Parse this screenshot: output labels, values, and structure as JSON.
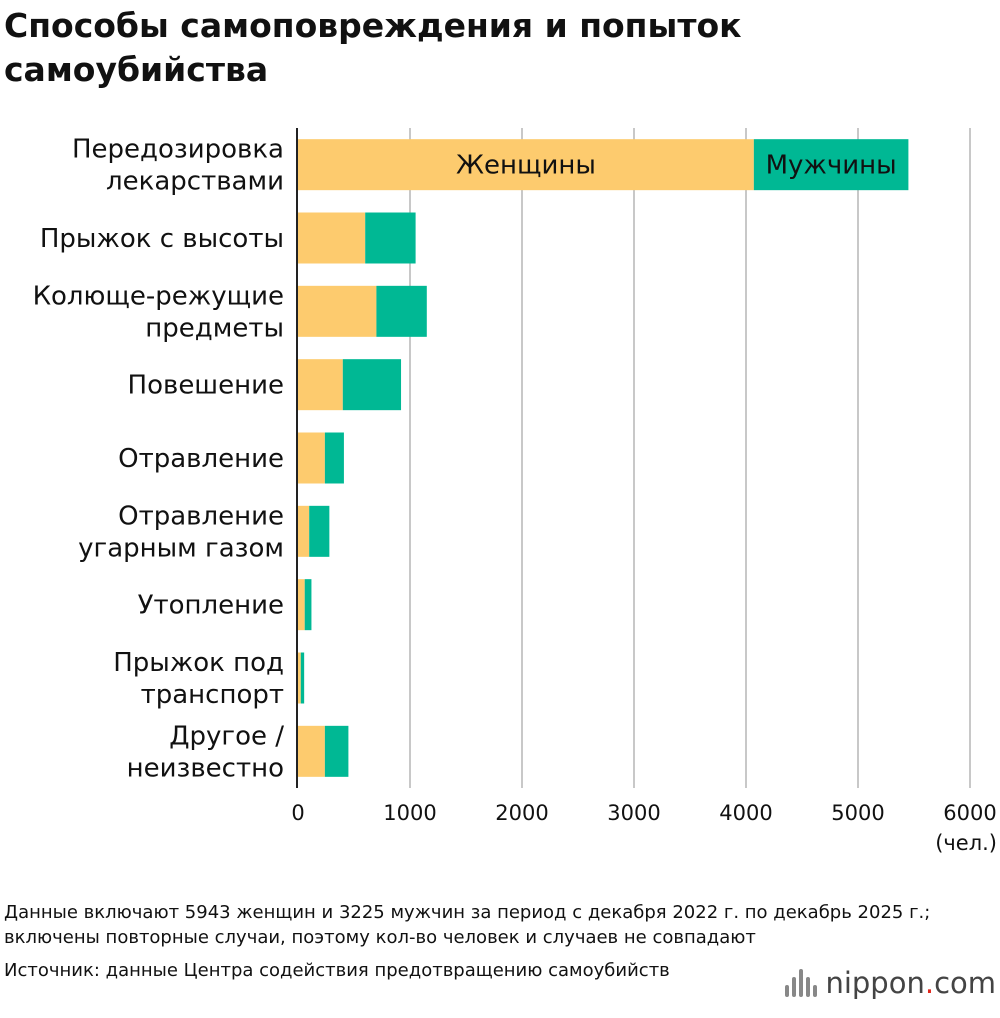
{
  "title": "Способы самоповреждения и попыток самоубийства",
  "chart_data": {
    "type": "bar",
    "orientation": "horizontal",
    "stacked": true,
    "categories": [
      [
        "Передозировка",
        "лекарствами"
      ],
      [
        "Прыжок с высоты"
      ],
      [
        "Колюще-режущие",
        "предметы"
      ],
      [
        "Повешение"
      ],
      [
        "Отравление"
      ],
      [
        "Отравление",
        "угарным газом"
      ],
      [
        "Утопление"
      ],
      [
        "Прыжок под",
        "транспорт"
      ],
      [
        "Другое /",
        "неизвестно"
      ]
    ],
    "series": [
      {
        "name": "Женщины",
        "color": "#fdcb6e",
        "values": [
          4070,
          600,
          700,
          400,
          240,
          100,
          60,
          25,
          240
        ]
      },
      {
        "name": "Мужчины",
        "color": "#00b894",
        "values": [
          1380,
          450,
          450,
          520,
          170,
          180,
          60,
          30,
          210
        ]
      }
    ],
    "xlim": [
      0,
      6000
    ],
    "xticks": [
      0,
      1000,
      2000,
      3000,
      4000,
      5000,
      6000
    ],
    "unit": "(чел.)",
    "grid": true,
    "legend": "inside-first-bar"
  },
  "footnote": "Данные включают 5943 женщин и 3225 мужчин за период с декабря 2022 г. по декабрь 2025 г.; включены повторные случаи, поэтому кол-во человек и случаев не совпадают",
  "source": "Источник: данные Центра содействия предотвращению самоубийств",
  "logo": {
    "name": "nippon",
    "dot": ".",
    "suffix": "com"
  }
}
